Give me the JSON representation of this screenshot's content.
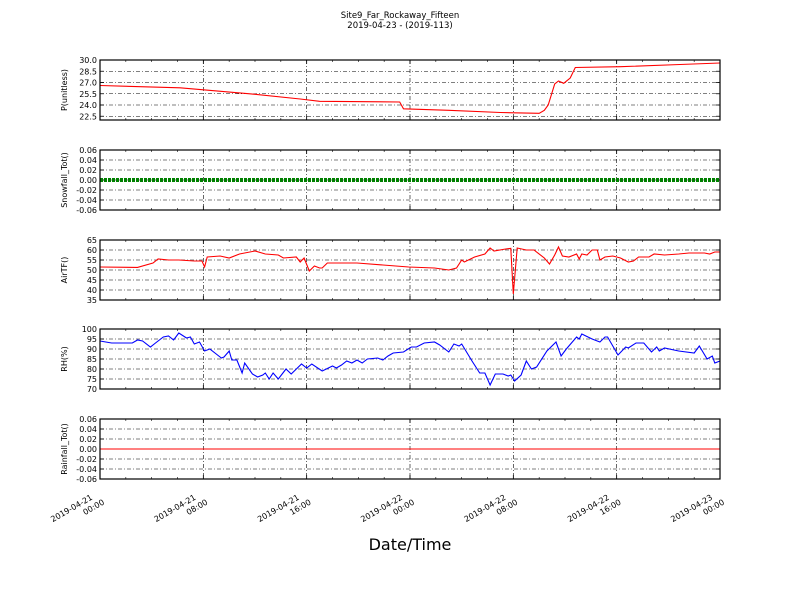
{
  "chart_data": {
    "type": "line",
    "title": "Site9_Far_Rockaway_Fifteen",
    "subtitle": "2019-04-23 - (2019-113)",
    "xlabel": "Date/Time",
    "x_unit": "hours since 2019-04-21 00:00",
    "xlim": [
      0,
      48
    ],
    "x_ticks": [
      0,
      8,
      16,
      24,
      32,
      40,
      48
    ],
    "x_tick_labels": [
      [
        "2019-04-21",
        "00:00"
      ],
      [
        "2019-04-21",
        "08:00"
      ],
      [
        "2019-04-21",
        "16:00"
      ],
      [
        "2019-04-22",
        "00:00"
      ],
      [
        "2019-04-22",
        "08:00"
      ],
      [
        "2019-04-22",
        "16:00"
      ],
      [
        "2019-04-23",
        "00:00"
      ]
    ],
    "grid": true,
    "panels": [
      {
        "ylabel": "P(unitless)",
        "ylim": [
          22,
          30
        ],
        "color": "#ff0000",
        "style": "line",
        "y_ticks": [
          "22.5",
          "24.0",
          "25.5",
          "27.0",
          "28.5",
          "30.0"
        ],
        "points": [
          [
            0,
            26.6
          ],
          [
            6.2,
            26.3
          ],
          [
            11.6,
            25.5
          ],
          [
            15.5,
            24.8
          ],
          [
            17,
            24.5
          ],
          [
            23.2,
            24.4
          ],
          [
            23.5,
            23.5
          ],
          [
            27,
            23.3
          ],
          [
            31,
            23.0
          ],
          [
            34,
            22.9
          ],
          [
            34.4,
            23.3
          ],
          [
            34.7,
            24.0
          ],
          [
            35.2,
            26.8
          ],
          [
            35.5,
            27.2
          ],
          [
            35.9,
            26.9
          ],
          [
            36.4,
            27.6
          ],
          [
            36.8,
            29.0
          ],
          [
            40.3,
            29.1
          ],
          [
            44.9,
            29.4
          ],
          [
            48,
            29.6
          ]
        ]
      },
      {
        "ylabel": "Snowfall_Tot()",
        "ylim": [
          -0.06,
          0.06
        ],
        "color": "#008000",
        "style": "markers",
        "y_ticks": [
          "-0.06",
          "-0.04",
          "-0.02",
          "0.00",
          "0.02",
          "0.04",
          "0.06"
        ],
        "points": [
          [
            0,
            0
          ],
          [
            48,
            0
          ]
        ]
      },
      {
        "ylabel": "AirTF()",
        "ylim": [
          35,
          65
        ],
        "color": "#ff0000",
        "style": "line",
        "y_ticks": [
          "35",
          "40",
          "45",
          "50",
          "55",
          "60",
          "65"
        ],
        "points": [
          [
            0,
            51.5
          ],
          [
            2.9,
            51.3
          ],
          [
            4.1,
            53.5
          ],
          [
            4.5,
            55.5
          ],
          [
            5.3,
            55
          ],
          [
            6.1,
            55
          ],
          [
            7.3,
            54.5
          ],
          [
            7.9,
            54.5
          ],
          [
            8.1,
            51.5
          ],
          [
            8.3,
            56.5
          ],
          [
            9.3,
            57
          ],
          [
            10,
            56
          ],
          [
            10.8,
            58
          ],
          [
            12,
            59.5
          ],
          [
            12.8,
            58
          ],
          [
            13.8,
            57.5
          ],
          [
            14.2,
            56
          ],
          [
            15.2,
            56.5
          ],
          [
            15.5,
            54
          ],
          [
            15.8,
            56
          ],
          [
            16.2,
            49.5
          ],
          [
            16.6,
            52
          ],
          [
            17,
            51
          ],
          [
            17.2,
            51
          ],
          [
            17.6,
            53.5
          ],
          [
            19.9,
            53.5
          ],
          [
            21.9,
            52.5
          ],
          [
            23.9,
            51.5
          ],
          [
            25.9,
            51
          ],
          [
            27,
            50
          ],
          [
            27.6,
            51
          ],
          [
            28,
            55
          ],
          [
            28.2,
            54
          ],
          [
            29,
            56.5
          ],
          [
            29.8,
            58
          ],
          [
            30.2,
            61
          ],
          [
            30.5,
            59.5
          ],
          [
            31.4,
            60.5
          ],
          [
            31.8,
            60.8
          ],
          [
            32,
            38
          ],
          [
            32.3,
            61
          ],
          [
            33,
            60
          ],
          [
            33.6,
            60
          ],
          [
            34.4,
            56
          ],
          [
            34.8,
            53
          ],
          [
            35.2,
            57.5
          ],
          [
            35.5,
            61.5
          ],
          [
            35.8,
            57
          ],
          [
            36.3,
            56.5
          ],
          [
            36.9,
            58
          ],
          [
            37.1,
            55.5
          ],
          [
            37.3,
            58
          ],
          [
            37.7,
            57.5
          ],
          [
            38.1,
            60
          ],
          [
            38.5,
            60
          ],
          [
            38.7,
            55
          ],
          [
            39.1,
            56.5
          ],
          [
            39.7,
            57
          ],
          [
            40.3,
            56
          ],
          [
            40.9,
            54
          ],
          [
            41.3,
            54.5
          ],
          [
            41.7,
            56.5
          ],
          [
            42.5,
            56.5
          ],
          [
            42.9,
            58
          ],
          [
            43.7,
            57.5
          ],
          [
            44.8,
            58
          ],
          [
            45.6,
            58.5
          ],
          [
            46.8,
            58.5
          ],
          [
            47.2,
            58
          ],
          [
            47.6,
            59
          ],
          [
            48,
            59
          ]
        ]
      },
      {
        "ylabel": "RH(%)",
        "ylim": [
          70,
          100
        ],
        "color": "#0000ff",
        "style": "line",
        "y_ticks": [
          "70",
          "75",
          "80",
          "85",
          "90",
          "95",
          "100"
        ],
        "points": [
          [
            0,
            94
          ],
          [
            0.9,
            93
          ],
          [
            2.5,
            93
          ],
          [
            2.9,
            94.5
          ],
          [
            3.3,
            94
          ],
          [
            3.9,
            91
          ],
          [
            4.3,
            93
          ],
          [
            4.9,
            96
          ],
          [
            5.3,
            96.5
          ],
          [
            5.7,
            94.5
          ],
          [
            6.1,
            98
          ],
          [
            6.7,
            95.5
          ],
          [
            7,
            96
          ],
          [
            7.3,
            92.5
          ],
          [
            7.7,
            93.5
          ],
          [
            8.1,
            89
          ],
          [
            8.5,
            90
          ],
          [
            9.1,
            87
          ],
          [
            9.4,
            85.5
          ],
          [
            9.6,
            86
          ],
          [
            10,
            89
          ],
          [
            10.2,
            84.5
          ],
          [
            10.6,
            84.5
          ],
          [
            11,
            78
          ],
          [
            11.2,
            83
          ],
          [
            11.8,
            77.5
          ],
          [
            12.2,
            76
          ],
          [
            12.6,
            77
          ],
          [
            12.8,
            78
          ],
          [
            13.1,
            75
          ],
          [
            13.4,
            78
          ],
          [
            13.8,
            75
          ],
          [
            14.4,
            80
          ],
          [
            14.8,
            77.5
          ],
          [
            15.6,
            82.5
          ],
          [
            16,
            80.5
          ],
          [
            16.4,
            82.5
          ],
          [
            17.2,
            79
          ],
          [
            18,
            81.5
          ],
          [
            18.3,
            80.5
          ],
          [
            18.7,
            82
          ],
          [
            19.1,
            84
          ],
          [
            19.5,
            83
          ],
          [
            19.9,
            84.5
          ],
          [
            20.3,
            83
          ],
          [
            20.7,
            85
          ],
          [
            21.5,
            85.5
          ],
          [
            21.9,
            84.5
          ],
          [
            22.3,
            86.5
          ],
          [
            22.7,
            88
          ],
          [
            23.5,
            88.5
          ],
          [
            24.1,
            91
          ],
          [
            24.5,
            91
          ],
          [
            25.1,
            93
          ],
          [
            25.9,
            93.5
          ],
          [
            26.3,
            92
          ],
          [
            27,
            88.5
          ],
          [
            27.4,
            92.5
          ],
          [
            27.8,
            91.5
          ],
          [
            28,
            92.5
          ],
          [
            28.8,
            84
          ],
          [
            29.4,
            78
          ],
          [
            29.8,
            78
          ],
          [
            30.2,
            72
          ],
          [
            30.6,
            77.5
          ],
          [
            31.2,
            77.5
          ],
          [
            31.6,
            76.5
          ],
          [
            31.8,
            77
          ],
          [
            32.1,
            74
          ],
          [
            32.6,
            77
          ],
          [
            33,
            84
          ],
          [
            33.4,
            80
          ],
          [
            33.8,
            81
          ],
          [
            34.6,
            89
          ],
          [
            35.3,
            93.5
          ],
          [
            35.7,
            86.5
          ],
          [
            36.1,
            90
          ],
          [
            36.9,
            96
          ],
          [
            37.1,
            95
          ],
          [
            37.3,
            97.5
          ],
          [
            38.1,
            95
          ],
          [
            38.7,
            93.5
          ],
          [
            39.1,
            96
          ],
          [
            39.3,
            96
          ],
          [
            40.1,
            87
          ],
          [
            40.7,
            91
          ],
          [
            40.9,
            90.5
          ],
          [
            41.5,
            93
          ],
          [
            42.1,
            93
          ],
          [
            42.7,
            88.5
          ],
          [
            43.1,
            91
          ],
          [
            43.3,
            89
          ],
          [
            43.7,
            90.5
          ],
          [
            44.8,
            89
          ],
          [
            46,
            88
          ],
          [
            46.4,
            91.5
          ],
          [
            47,
            85
          ],
          [
            47.4,
            86.5
          ],
          [
            47.6,
            83
          ],
          [
            48,
            84
          ]
        ]
      },
      {
        "ylabel": "Rainfall_Tot()",
        "ylim": [
          -0.06,
          0.06
        ],
        "color": "#ff0000",
        "style": "line",
        "y_ticks": [
          "-0.06",
          "-0.04",
          "-0.02",
          "0.00",
          "0.02",
          "0.04",
          "0.06"
        ],
        "points": [
          [
            0,
            0
          ],
          [
            48,
            0
          ]
        ]
      }
    ]
  }
}
